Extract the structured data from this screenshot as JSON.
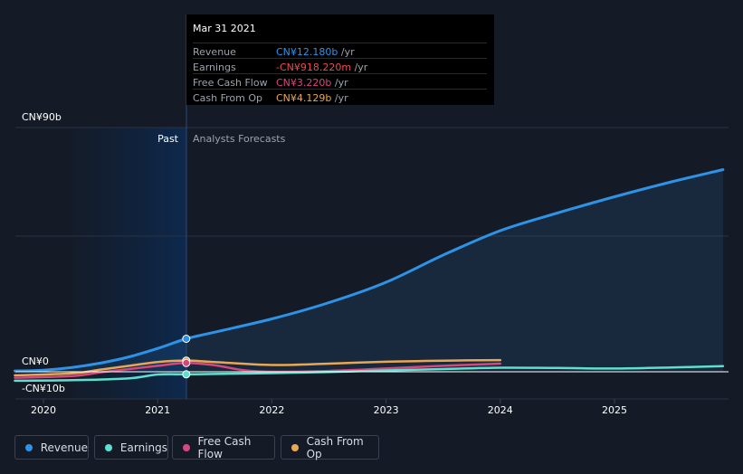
{
  "chart_data": {
    "type": "line",
    "x_ticks": [
      "2020",
      "2021",
      "2022",
      "2023",
      "2024",
      "2025"
    ],
    "y_labels": {
      "top": "CN¥90b",
      "zero": "CN¥0",
      "bottom": "-CN¥10b"
    },
    "ylim": [
      -10,
      90
    ],
    "xlim": [
      2019.75,
      2025.95
    ],
    "divider_x": 2021.25,
    "region_labels": {
      "past": "Past",
      "forecast": "Analysts Forecasts"
    },
    "series": [
      {
        "name": "Revenue",
        "color": "#2e93e6",
        "area": true,
        "points": [
          [
            2019.75,
            0.3
          ],
          [
            2020.0,
            0.6
          ],
          [
            2020.25,
            1.6
          ],
          [
            2020.5,
            3.2
          ],
          [
            2020.75,
            5.5
          ],
          [
            2021.0,
            8.6
          ],
          [
            2021.25,
            12.18
          ],
          [
            2021.5,
            14.6
          ],
          [
            2022.0,
            19.5
          ],
          [
            2022.5,
            25.5
          ],
          [
            2023.0,
            33.0
          ],
          [
            2023.5,
            43.0
          ],
          [
            2024.0,
            52.0
          ],
          [
            2024.5,
            58.5
          ],
          [
            2025.0,
            64.5
          ],
          [
            2025.5,
            70.0
          ],
          [
            2025.95,
            74.5
          ]
        ]
      },
      {
        "name": "Earnings",
        "color": "#5de0d0",
        "points": [
          [
            2019.75,
            -3.3
          ],
          [
            2020.25,
            -3.1
          ],
          [
            2020.75,
            -2.4
          ],
          [
            2021.0,
            -1.0
          ],
          [
            2021.25,
            -0.918
          ],
          [
            2021.5,
            -0.8
          ],
          [
            2022.0,
            -0.5
          ],
          [
            2022.5,
            -0.1
          ],
          [
            2023.0,
            0.5
          ],
          [
            2023.5,
            1.0
          ],
          [
            2024.0,
            1.5
          ],
          [
            2024.5,
            1.4
          ],
          [
            2025.0,
            1.2
          ],
          [
            2025.5,
            1.6
          ],
          [
            2025.95,
            2.1
          ]
        ]
      },
      {
        "name": "Free Cash Flow",
        "color": "#d4487e",
        "points": [
          [
            2019.75,
            -2.2
          ],
          [
            2020.25,
            -1.6
          ],
          [
            2020.5,
            -0.2
          ],
          [
            2020.75,
            1.0
          ],
          [
            2021.0,
            2.2
          ],
          [
            2021.25,
            3.22
          ],
          [
            2021.5,
            2.4
          ],
          [
            2021.75,
            0.6
          ],
          [
            2022.0,
            0.0
          ],
          [
            2022.5,
            0.3
          ],
          [
            2023.0,
            1.2
          ],
          [
            2023.5,
            2.2
          ],
          [
            2024.0,
            3.0
          ]
        ]
      },
      {
        "name": "Cash From Op",
        "color": "#e8a756",
        "points": [
          [
            2019.75,
            -1.3
          ],
          [
            2020.25,
            -0.6
          ],
          [
            2020.5,
            0.8
          ],
          [
            2020.75,
            2.2
          ],
          [
            2021.0,
            3.6
          ],
          [
            2021.25,
            4.129
          ],
          [
            2021.5,
            3.6
          ],
          [
            2022.0,
            2.5
          ],
          [
            2022.5,
            3.0
          ],
          [
            2023.0,
            3.7
          ],
          [
            2023.5,
            4.1
          ],
          [
            2024.0,
            4.3
          ]
        ]
      }
    ]
  },
  "tooltip": {
    "date": "Mar 31 2021",
    "unit": "/yr",
    "rows": [
      {
        "label": "Revenue",
        "value": "CN¥12.180b",
        "color": "#2e93e6"
      },
      {
        "label": "Earnings",
        "value": "-CN¥918.220m",
        "color": "#ee4c4c"
      },
      {
        "label": "Free Cash Flow",
        "value": "CN¥3.220b",
        "color": "#d4487e"
      },
      {
        "label": "Cash From Op",
        "value": "CN¥4.129b",
        "color": "#e8a756"
      }
    ]
  },
  "legend": [
    {
      "label": "Revenue",
      "color": "#2e93e6"
    },
    {
      "label": "Earnings",
      "color": "#5de0d0"
    },
    {
      "label": "Free Cash Flow",
      "color": "#d4487e"
    },
    {
      "label": "Cash From Op",
      "color": "#e8a756"
    }
  ]
}
